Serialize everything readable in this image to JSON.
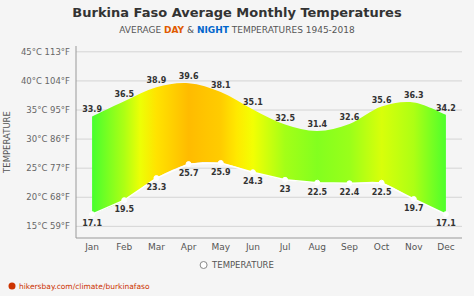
{
  "chart_data": {
    "type": "area",
    "title": "Burkina Faso Average Monthly Temperatures",
    "subtitle": [
      {
        "text": "AVERAGE "
      },
      {
        "text": "DAY",
        "color": "#e05a00"
      },
      {
        "text": " & "
      },
      {
        "text": "NIGHT",
        "color": "#0066cc"
      },
      {
        "text": " TEMPERATURES 1945-2018"
      }
    ],
    "categories": [
      "Jan",
      "Feb",
      "Mar",
      "Apr",
      "May",
      "Jun",
      "Jul",
      "Aug",
      "Sep",
      "Oct",
      "Nov",
      "Dec"
    ],
    "series": [
      {
        "name": "TEMPERATURE",
        "values": [
          33.9,
          36.5,
          38.9,
          39.6,
          38.1,
          35.1,
          32.5,
          31.4,
          32.6,
          35.6,
          36.3,
          34.2
        ],
        "low_values": [
          17.1,
          19.5,
          23.3,
          25.7,
          25.9,
          24.3,
          23.0,
          22.5,
          22.4,
          22.5,
          19.7,
          17.1
        ],
        "marker": "circle"
      }
    ],
    "y_label": "TEMPERATURE",
    "ylim": [
      13,
      46
    ],
    "yticks": [
      {
        "value": 15,
        "label": "15°C 59°F"
      },
      {
        "value": 20,
        "label": "20°C 68°F"
      },
      {
        "value": 25,
        "label": "25°C 77°F"
      },
      {
        "value": 30,
        "label": "30°C 86°F"
      },
      {
        "value": 35,
        "label": "35°C 95°F"
      },
      {
        "value": 40,
        "label": "40°C 104°F"
      },
      {
        "value": 45,
        "label": "45°C 113°F"
      }
    ],
    "grid": true,
    "data_labels": true,
    "legend": "bottom",
    "annotations": [
      {
        "text": "hikersbay.com/climate/burkinafaso",
        "color": "#cc3300"
      }
    ]
  }
}
